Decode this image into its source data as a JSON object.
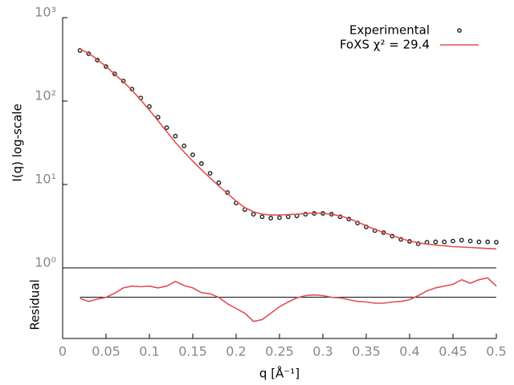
{
  "chart_data": [
    {
      "type": "line",
      "ylabel": "I(q) log-scale",
      "log_y": true,
      "xlim": [
        0,
        0.5
      ],
      "ylim": [
        1,
        1000
      ],
      "yticks": [
        {
          "value": 1,
          "label": "10⁰"
        },
        {
          "value": 10,
          "label": "10¹"
        },
        {
          "value": 100,
          "label": "10²"
        },
        {
          "value": 1000,
          "label": "10³"
        }
      ],
      "legend": "upper right",
      "x": [
        0.02,
        0.03,
        0.04,
        0.05,
        0.06,
        0.07,
        0.08,
        0.09,
        0.1,
        0.11,
        0.12,
        0.13,
        0.14,
        0.15,
        0.16,
        0.17,
        0.18,
        0.19,
        0.2,
        0.21,
        0.22,
        0.23,
        0.24,
        0.25,
        0.26,
        0.27,
        0.28,
        0.29,
        0.3,
        0.31,
        0.32,
        0.33,
        0.34,
        0.35,
        0.36,
        0.37,
        0.38,
        0.39,
        0.4,
        0.41,
        0.42,
        0.43,
        0.44,
        0.45,
        0.46,
        0.47,
        0.48,
        0.49,
        0.5
      ],
      "series": [
        {
          "name": "Experimental",
          "type": "scatter",
          "color": "#222222",
          "values": [
            404,
            369,
            310,
            259,
            212,
            174,
            139,
            109,
            86,
            64,
            48,
            38,
            29,
            22.7,
            17.8,
            13.6,
            10.5,
            8.0,
            6.0,
            5.0,
            4.4,
            4.1,
            3.95,
            4.0,
            4.1,
            4.2,
            4.4,
            4.5,
            4.5,
            4.4,
            4.1,
            3.85,
            3.45,
            3.1,
            2.8,
            2.65,
            2.4,
            2.2,
            2.08,
            1.95,
            2.03,
            2.05,
            2.05,
            2.1,
            2.15,
            2.1,
            2.05,
            2.05,
            2.03
          ]
        },
        {
          "name": "FoXS χ² = 29.4",
          "type": "line",
          "color": "#e05050",
          "values": [
            420,
            375,
            315,
            260,
            210,
            170,
            135,
            103,
            78,
            58,
            43,
            32,
            24.5,
            19,
            15,
            12,
            9.6,
            7.8,
            6.3,
            5.3,
            4.7,
            4.4,
            4.3,
            4.3,
            4.35,
            4.4,
            4.5,
            4.55,
            4.5,
            4.4,
            4.2,
            3.9,
            3.55,
            3.2,
            2.9,
            2.65,
            2.45,
            2.25,
            2.1,
            2.0,
            1.93,
            1.88,
            1.84,
            1.8,
            1.78,
            1.76,
            1.73,
            1.71,
            1.69
          ]
        }
      ]
    },
    {
      "type": "line",
      "ylabel": "Residual",
      "xlabel": "q [Å⁻¹]",
      "xlim": [
        0,
        0.5
      ],
      "xticks": [
        0,
        0.05,
        0.1,
        0.15,
        0.2,
        0.25,
        0.3,
        0.35,
        0.4,
        0.45,
        0.5
      ],
      "ylim": [
        -3.5,
        2.5
      ],
      "x": [
        0.02,
        0.03,
        0.04,
        0.05,
        0.06,
        0.07,
        0.08,
        0.09,
        0.1,
        0.11,
        0.12,
        0.13,
        0.14,
        0.15,
        0.16,
        0.17,
        0.18,
        0.19,
        0.2,
        0.21,
        0.22,
        0.23,
        0.24,
        0.25,
        0.26,
        0.27,
        0.28,
        0.29,
        0.3,
        0.31,
        0.32,
        0.33,
        0.34,
        0.35,
        0.36,
        0.37,
        0.38,
        0.39,
        0.4,
        0.41,
        0.42,
        0.43,
        0.44,
        0.45,
        0.46,
        0.47,
        0.48,
        0.49,
        0.5
      ],
      "series": [
        {
          "color": "#e05050",
          "values": [
            -0.1,
            -0.35,
            -0.15,
            0,
            0.35,
            0.8,
            0.95,
            0.9,
            0.95,
            0.8,
            0.95,
            1.35,
            1.0,
            0.8,
            0.4,
            0.3,
            0,
            -0.55,
            -0.95,
            -1.35,
            -2.05,
            -1.9,
            -1.35,
            -0.8,
            -0.4,
            -0.05,
            0.15,
            0.2,
            0.15,
            0,
            -0.05,
            -0.2,
            -0.35,
            -0.4,
            -0.5,
            -0.5,
            -0.4,
            -0.35,
            -0.2,
            0.15,
            0.55,
            0.8,
            0.95,
            1.1,
            1.5,
            1.2,
            1.5,
            1.65,
            0.95
          ]
        }
      ]
    }
  ]
}
